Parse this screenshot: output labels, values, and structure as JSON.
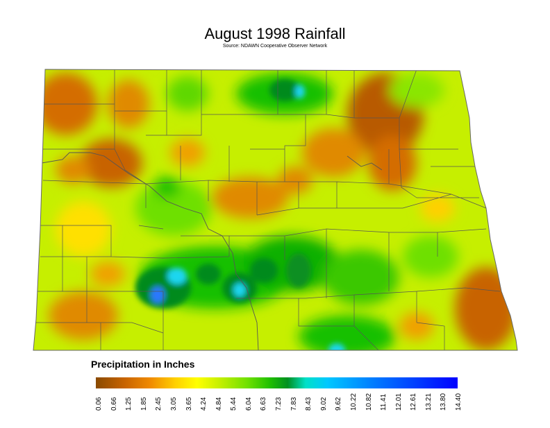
{
  "map": {
    "title": "August 1998 Rainfall",
    "subtitle": "Source: NDAWN Cooperative Observer Network"
  },
  "legend": {
    "title": "Precipitation in Inches",
    "colors": [
      "#8a4a00",
      "#c86400",
      "#f08a00",
      "#ffd000",
      "#ffff00",
      "#c8f000",
      "#6ee000",
      "#21c000",
      "#009020",
      "#00e0c8",
      "#00c8ff",
      "#0080ff",
      "#0040ff",
      "#0000ff"
    ],
    "ticks": [
      "0.06",
      "0.66",
      "1.25",
      "1.85",
      "2.45",
      "3.05",
      "3.65",
      "4.24",
      "4.84",
      "5.44",
      "6.04",
      "6.63",
      "7.23",
      "7.83",
      "8.43",
      "9.02",
      "9.62",
      "10.22",
      "10.82",
      "11.41",
      "12.01",
      "12.61",
      "13.21",
      "13.80",
      "14.40"
    ]
  },
  "colors": {
    "base": "#c6ef00",
    "dry": "#d46d00",
    "very_dry": "#9a5200",
    "wet": "#18c000",
    "very_wet": "#008a1a",
    "cyan": "#1ed6f0",
    "blue": "#2a78ff"
  }
}
